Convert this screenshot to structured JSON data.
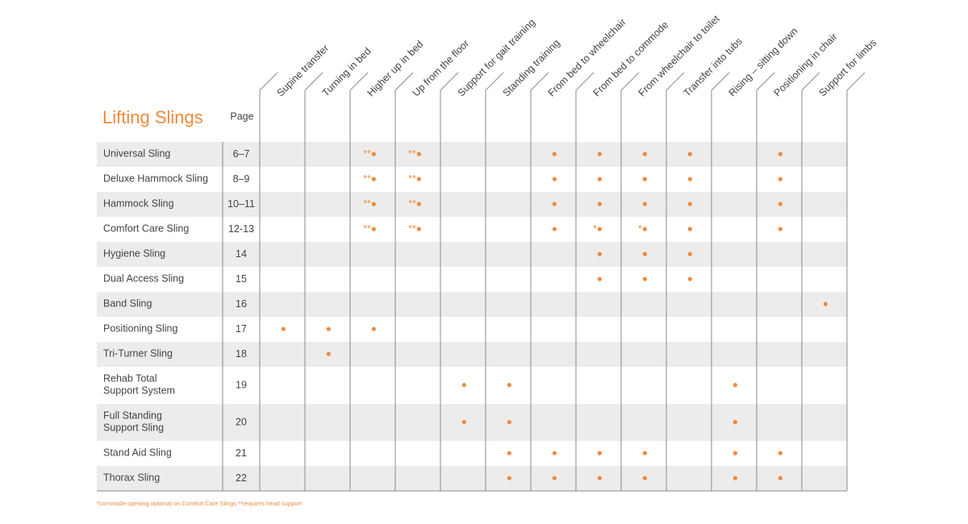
{
  "table": {
    "title": "Lifting Slings",
    "page_header": "Page",
    "columns": [
      "Supine transfer",
      "Turning in bed",
      "Higher up in bed",
      "Up from the floor",
      "Support for gait training",
      "Standing training",
      "From bed to wheelchair",
      "From bed to commode",
      "From wheelchair to toilet",
      "Transfer into tubs",
      "Rising – sitting down",
      "Positioning in chair",
      "Support for limbs"
    ],
    "rows": [
      {
        "name": [
          "Universal Sling"
        ],
        "page": "6–7",
        "cells": [
          null,
          null,
          "**●",
          "**●",
          null,
          null,
          "●",
          "●",
          "●",
          "●",
          null,
          "●",
          null
        ]
      },
      {
        "name": [
          "Deluxe Hammock Sling"
        ],
        "page": "8–9",
        "cells": [
          null,
          null,
          "**●",
          "**●",
          null,
          null,
          "●",
          "●",
          "●",
          "●",
          null,
          "●",
          null
        ]
      },
      {
        "name": [
          "Hammock Sling"
        ],
        "page": "10–11",
        "cells": [
          null,
          null,
          "**●",
          "**●",
          null,
          null,
          "●",
          "●",
          "●",
          "●",
          null,
          "●",
          null
        ]
      },
      {
        "name": [
          "Comfort Care Sling"
        ],
        "page": "12-13",
        "cells": [
          null,
          null,
          "**●",
          "**●",
          null,
          null,
          "●",
          "*●",
          "*●",
          "●",
          null,
          "●",
          null
        ]
      },
      {
        "name": [
          "Hygiene Sling"
        ],
        "page": "14",
        "cells": [
          null,
          null,
          null,
          null,
          null,
          null,
          null,
          "●",
          "●",
          "●",
          null,
          null,
          null
        ]
      },
      {
        "name": [
          "Dual Access Sling"
        ],
        "page": "15",
        "cells": [
          null,
          null,
          null,
          null,
          null,
          null,
          null,
          "●",
          "●",
          "●",
          null,
          null,
          null
        ]
      },
      {
        "name": [
          "Band Sling"
        ],
        "page": "16",
        "cells": [
          null,
          null,
          null,
          null,
          null,
          null,
          null,
          null,
          null,
          null,
          null,
          null,
          "●"
        ]
      },
      {
        "name": [
          "Positioning Sling"
        ],
        "page": "17",
        "cells": [
          "●",
          "●",
          "●",
          null,
          null,
          null,
          null,
          null,
          null,
          null,
          null,
          null,
          null
        ]
      },
      {
        "name": [
          "Tri-Turner Sling"
        ],
        "page": "18",
        "cells": [
          null,
          "●",
          null,
          null,
          null,
          null,
          null,
          null,
          null,
          null,
          null,
          null,
          null
        ]
      },
      {
        "name": [
          "Rehab Total",
          "Support System"
        ],
        "page": "19",
        "cells": [
          null,
          null,
          null,
          null,
          "●",
          "●",
          null,
          null,
          null,
          null,
          "●",
          null,
          null
        ]
      },
      {
        "name": [
          "Full Standing",
          "Support Sling"
        ],
        "page": "20",
        "cells": [
          null,
          null,
          null,
          null,
          "●",
          "●",
          null,
          null,
          null,
          null,
          "●",
          null,
          null
        ]
      },
      {
        "name": [
          "Stand Aid Sling"
        ],
        "page": "21",
        "cells": [
          null,
          null,
          null,
          null,
          null,
          "●",
          "●",
          "●",
          "●",
          null,
          "●",
          "●",
          null
        ]
      },
      {
        "name": [
          "Thorax Sling"
        ],
        "page": "22",
        "cells": [
          null,
          null,
          null,
          null,
          null,
          "●",
          "●",
          "●",
          "●",
          null,
          "●",
          "●",
          null
        ]
      }
    ],
    "footnote": "*commode opening optional on Comfort Care Slings  **requires head support"
  }
}
